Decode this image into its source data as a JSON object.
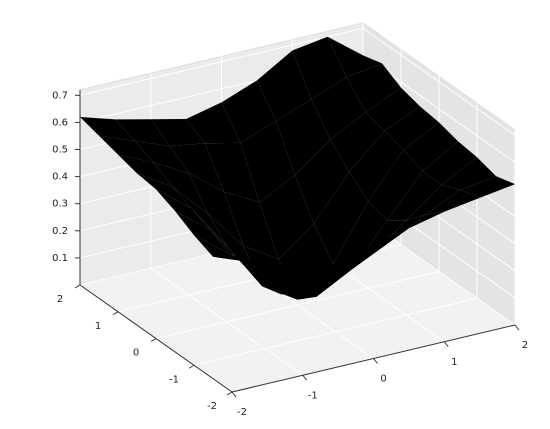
{
  "chart_data": {
    "type": "surface",
    "colormap": "inferno",
    "x": [
      -2,
      -1.5,
      -1,
      -0.5,
      0,
      0.5,
      1,
      1.5,
      2
    ],
    "y": [
      -2,
      -1.5,
      -1,
      -0.5,
      0,
      0.5,
      1,
      1.5,
      2
    ],
    "z": [
      [
        0.5,
        0.45,
        0.4,
        0.38,
        0.42,
        0.45,
        0.48,
        0.5,
        0.52
      ],
      [
        0.45,
        0.4,
        0.35,
        0.3,
        0.3,
        0.35,
        0.42,
        0.48,
        0.5
      ],
      [
        0.48,
        0.38,
        0.3,
        0.22,
        0.2,
        0.25,
        0.35,
        0.45,
        0.52
      ],
      [
        0.52,
        0.42,
        0.25,
        0.12,
        0.08,
        0.15,
        0.3,
        0.45,
        0.53
      ],
      [
        0.55,
        0.45,
        0.28,
        0.1,
        0.02,
        0.12,
        0.32,
        0.48,
        0.55
      ],
      [
        0.56,
        0.48,
        0.35,
        0.2,
        0.12,
        0.22,
        0.38,
        0.5,
        0.56
      ],
      [
        0.58,
        0.52,
        0.45,
        0.35,
        0.28,
        0.35,
        0.45,
        0.52,
        0.58
      ],
      [
        0.6,
        0.55,
        0.5,
        0.48,
        0.45,
        0.5,
        0.55,
        0.6,
        0.62
      ],
      [
        0.62,
        0.58,
        0.55,
        0.52,
        0.55,
        0.6,
        0.68,
        0.7,
        0.6
      ]
    ],
    "xlim": [
      -2,
      2
    ],
    "ylim": [
      -2,
      2
    ],
    "zlim": [
      0,
      0.72
    ],
    "xticks": [
      -2,
      -1,
      0,
      1,
      2
    ],
    "yticks": [
      -2,
      -1,
      0,
      1,
      2
    ],
    "zticks": [
      0.1,
      0.2,
      0.3,
      0.4,
      0.5,
      0.6,
      0.7
    ],
    "grid": true
  }
}
